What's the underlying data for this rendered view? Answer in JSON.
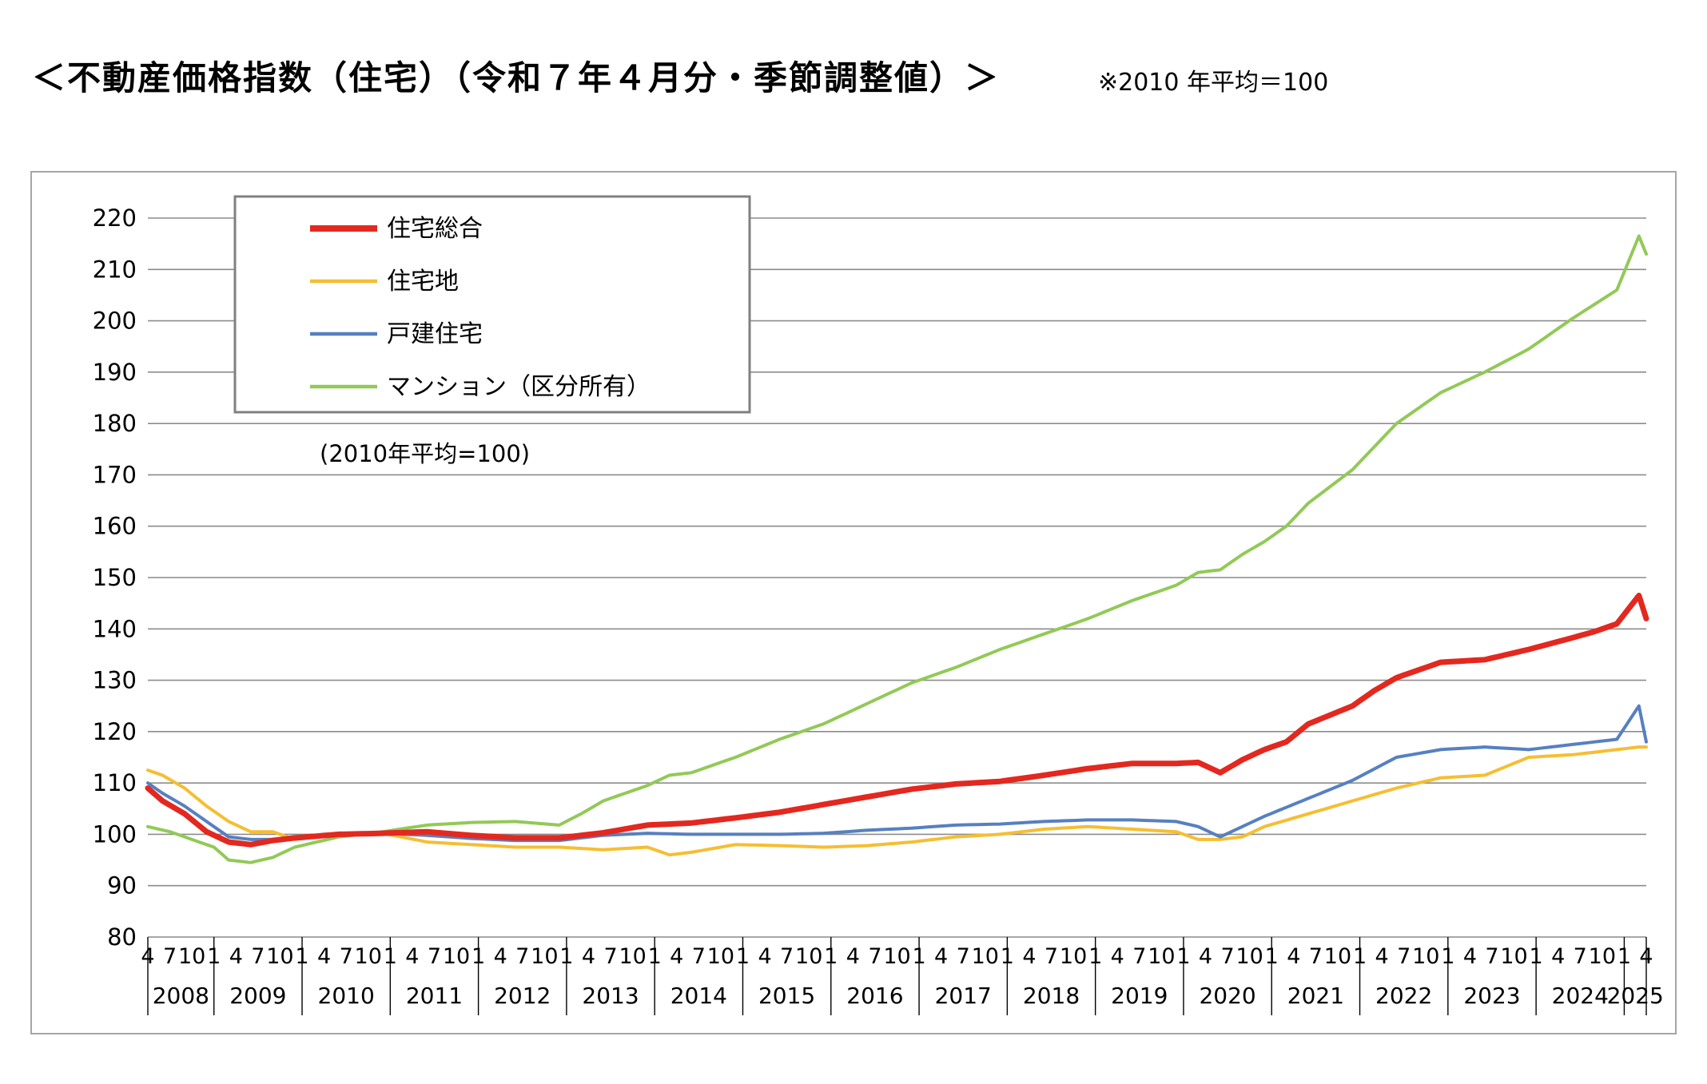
{
  "page": {
    "title": "＜不動産価格指数（住宅）（令和７年４月分・季節調整値）＞",
    "note": "※2010 年平均＝100"
  },
  "colors": {
    "住宅総合": "#e3281f",
    "住宅地": "#f5be32",
    "戸建住宅": "#5680c0",
    "マンション（区分所有）": "#92c957",
    "grid": "#8c8c8c"
  },
  "chart_data": {
    "type": "line",
    "title": "",
    "xlabel": "",
    "ylabel": "",
    "ylim": [
      80,
      220
    ],
    "yticks": [
      80,
      90,
      100,
      110,
      120,
      130,
      140,
      150,
      160,
      170,
      180,
      190,
      200,
      210,
      220
    ],
    "grid": true,
    "legend_position": "top-left",
    "annotation": "(2010年平均=100)",
    "x_start": "2008-04",
    "x_end": "2025-04",
    "frequency": "monthly",
    "month_tick_labels": [
      "1",
      "4",
      "7",
      "10"
    ],
    "year_labels": [
      "2008",
      "2009",
      "2010",
      "2011",
      "2012",
      "2013",
      "2014",
      "2015",
      "2016",
      "2017",
      "2018",
      "2019",
      "2020",
      "2021",
      "2022",
      "2023",
      "2024",
      "2025"
    ],
    "series": [
      {
        "name": "住宅総合",
        "color": "#e3281f",
        "keypoints": [
          [
            "2008-04",
            109
          ],
          [
            "2008-06",
            106.5
          ],
          [
            "2008-09",
            104
          ],
          [
            "2008-12",
            100.5
          ],
          [
            "2009-03",
            98.5
          ],
          [
            "2009-06",
            98
          ],
          [
            "2009-09",
            98.8
          ],
          [
            "2009-12",
            99.3
          ],
          [
            "2010-06",
            100
          ],
          [
            "2010-12",
            100.2
          ],
          [
            "2011-06",
            100.5
          ],
          [
            "2011-12",
            99.8
          ],
          [
            "2012-06",
            99.3
          ],
          [
            "2012-12",
            99.3
          ],
          [
            "2013-06",
            100.3
          ],
          [
            "2013-12",
            101.8
          ],
          [
            "2014-06",
            102.2
          ],
          [
            "2014-12",
            103.2
          ],
          [
            "2015-06",
            104.3
          ],
          [
            "2015-12",
            105.8
          ],
          [
            "2016-06",
            107.3
          ],
          [
            "2016-12",
            108.8
          ],
          [
            "2017-06",
            109.8
          ],
          [
            "2017-12",
            110.3
          ],
          [
            "2018-06",
            111.5
          ],
          [
            "2018-12",
            112.8
          ],
          [
            "2019-06",
            113.8
          ],
          [
            "2019-12",
            113.8
          ],
          [
            "2020-03",
            114
          ],
          [
            "2020-06",
            112
          ],
          [
            "2020-09",
            114.5
          ],
          [
            "2020-12",
            116.5
          ],
          [
            "2021-03",
            118
          ],
          [
            "2021-06",
            121.5
          ],
          [
            "2021-12",
            125
          ],
          [
            "2022-03",
            128
          ],
          [
            "2022-06",
            130.5
          ],
          [
            "2022-12",
            133.5
          ],
          [
            "2023-06",
            134
          ],
          [
            "2023-12",
            136
          ],
          [
            "2024-06",
            138.3
          ],
          [
            "2024-09",
            139.5
          ],
          [
            "2024-12",
            141
          ],
          [
            "2025-03",
            146.5
          ],
          [
            "2025-04",
            142
          ]
        ]
      },
      {
        "name": "住宅地",
        "color": "#f5be32",
        "keypoints": [
          [
            "2008-04",
            112.5
          ],
          [
            "2008-06",
            111.5
          ],
          [
            "2008-09",
            109
          ],
          [
            "2008-12",
            105.5
          ],
          [
            "2009-03",
            102.5
          ],
          [
            "2009-06",
            100.5
          ],
          [
            "2009-09",
            100.5
          ],
          [
            "2009-12",
            99
          ],
          [
            "2010-06",
            100
          ],
          [
            "2010-12",
            100.2
          ],
          [
            "2011-06",
            98.5
          ],
          [
            "2011-12",
            98
          ],
          [
            "2012-06",
            97.5
          ],
          [
            "2012-12",
            97.5
          ],
          [
            "2013-06",
            97
          ],
          [
            "2013-12",
            97.5
          ],
          [
            "2014-03",
            96
          ],
          [
            "2014-06",
            96.5
          ],
          [
            "2014-12",
            98
          ],
          [
            "2015-06",
            97.8
          ],
          [
            "2015-12",
            97.5
          ],
          [
            "2016-06",
            97.8
          ],
          [
            "2016-12",
            98.5
          ],
          [
            "2017-06",
            99.5
          ],
          [
            "2017-12",
            100
          ],
          [
            "2018-06",
            101
          ],
          [
            "2018-12",
            101.5
          ],
          [
            "2019-06",
            101
          ],
          [
            "2019-12",
            100.5
          ],
          [
            "2020-03",
            99
          ],
          [
            "2020-06",
            99
          ],
          [
            "2020-09",
            99.5
          ],
          [
            "2020-12",
            101.5
          ],
          [
            "2021-06",
            104
          ],
          [
            "2021-12",
            106.5
          ],
          [
            "2022-06",
            109
          ],
          [
            "2022-12",
            111
          ],
          [
            "2023-06",
            111.5
          ],
          [
            "2023-12",
            115
          ],
          [
            "2024-06",
            115.5
          ],
          [
            "2024-12",
            116.5
          ],
          [
            "2025-03",
            117
          ],
          [
            "2025-04",
            117
          ]
        ]
      },
      {
        "name": "戸建住宅",
        "color": "#5680c0",
        "keypoints": [
          [
            "2008-04",
            110
          ],
          [
            "2008-06",
            108
          ],
          [
            "2008-09",
            105.5
          ],
          [
            "2008-12",
            102.5
          ],
          [
            "2009-03",
            99.5
          ],
          [
            "2009-06",
            99
          ],
          [
            "2009-09",
            99
          ],
          [
            "2009-12",
            99.5
          ],
          [
            "2010-06",
            100
          ],
          [
            "2010-12",
            100.2
          ],
          [
            "2011-06",
            99.8
          ],
          [
            "2011-12",
            99.2
          ],
          [
            "2012-06",
            98.8
          ],
          [
            "2012-12",
            98.8
          ],
          [
            "2013-06",
            99.8
          ],
          [
            "2013-12",
            100.2
          ],
          [
            "2014-06",
            100
          ],
          [
            "2014-12",
            100
          ],
          [
            "2015-06",
            100
          ],
          [
            "2015-12",
            100.2
          ],
          [
            "2016-06",
            100.8
          ],
          [
            "2016-12",
            101.2
          ],
          [
            "2017-06",
            101.8
          ],
          [
            "2017-12",
            102
          ],
          [
            "2018-06",
            102.5
          ],
          [
            "2018-12",
            102.8
          ],
          [
            "2019-06",
            102.8
          ],
          [
            "2019-12",
            102.5
          ],
          [
            "2020-03",
            101.5
          ],
          [
            "2020-06",
            99.5
          ],
          [
            "2020-09",
            101.5
          ],
          [
            "2020-12",
            103.5
          ],
          [
            "2021-06",
            107
          ],
          [
            "2021-12",
            110.5
          ],
          [
            "2022-06",
            115
          ],
          [
            "2022-12",
            116.5
          ],
          [
            "2023-06",
            117
          ],
          [
            "2023-12",
            116.5
          ],
          [
            "2024-06",
            117.5
          ],
          [
            "2024-12",
            118.5
          ],
          [
            "2025-03",
            125
          ],
          [
            "2025-04",
            118
          ]
        ]
      },
      {
        "name": "マンション（区分所有）",
        "color": "#92c957",
        "keypoints": [
          [
            "2008-04",
            101.5
          ],
          [
            "2008-07",
            100.5
          ],
          [
            "2008-10",
            99
          ],
          [
            "2009-01",
            97.5
          ],
          [
            "2009-03",
            95
          ],
          [
            "2009-06",
            94.5
          ],
          [
            "2009-09",
            95.5
          ],
          [
            "2009-12",
            97.5
          ],
          [
            "2010-06",
            99.5
          ],
          [
            "2010-12",
            100.5
          ],
          [
            "2011-06",
            101.8
          ],
          [
            "2011-12",
            102.3
          ],
          [
            "2012-06",
            102.5
          ],
          [
            "2012-12",
            101.8
          ],
          [
            "2013-03",
            104
          ],
          [
            "2013-06",
            106.5
          ],
          [
            "2013-12",
            109.5
          ],
          [
            "2014-03",
            111.5
          ],
          [
            "2014-06",
            112
          ],
          [
            "2014-12",
            115
          ],
          [
            "2015-06",
            118.5
          ],
          [
            "2015-12",
            121.5
          ],
          [
            "2016-06",
            125.5
          ],
          [
            "2016-12",
            129.5
          ],
          [
            "2017-06",
            132.5
          ],
          [
            "2017-12",
            136
          ],
          [
            "2018-06",
            139
          ],
          [
            "2018-12",
            142
          ],
          [
            "2019-06",
            145.5
          ],
          [
            "2019-12",
            148.5
          ],
          [
            "2020-03",
            151
          ],
          [
            "2020-06",
            151.5
          ],
          [
            "2020-09",
            154.5
          ],
          [
            "2020-12",
            157
          ],
          [
            "2021-03",
            160
          ],
          [
            "2021-06",
            164.5
          ],
          [
            "2021-12",
            171
          ],
          [
            "2022-06",
            180
          ],
          [
            "2022-12",
            186
          ],
          [
            "2023-06",
            190
          ],
          [
            "2023-12",
            194.5
          ],
          [
            "2024-06",
            200.5
          ],
          [
            "2024-12",
            206
          ],
          [
            "2025-03",
            216.5
          ],
          [
            "2025-04",
            213
          ]
        ]
      }
    ]
  }
}
